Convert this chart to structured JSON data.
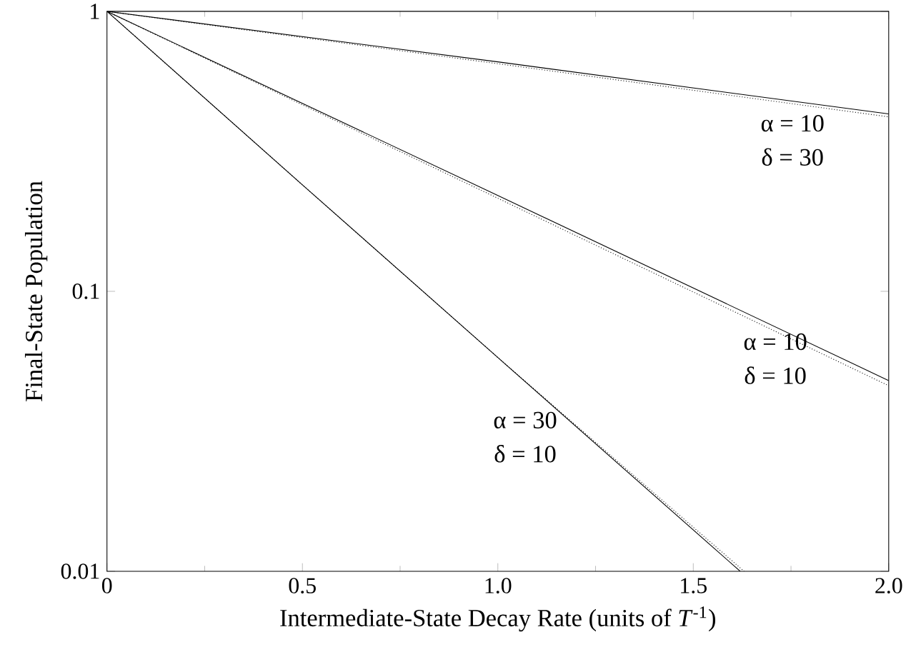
{
  "chart_data": {
    "type": "line",
    "xlabel": "Intermediate-State Decay Rate (units of *T*$^{-1}$)",
    "ylabel": "Final-State Population",
    "log": "y",
    "grid": false,
    "marker": "none",
    "xlim": [
      0,
      2
    ],
    "ylim": [
      0.01,
      1
    ],
    "xticks": [
      0,
      0.5,
      {
        "value": 1,
        "label": "1.0"
      },
      1.5,
      {
        "value": 2,
        "label": "2.0"
      }
    ],
    "yticks": [
      0.01,
      0.1,
      1
    ],
    "series": [
      {
        "color": "#000000",
        "line_style": "solid",
        "x": [
          0,
          1,
          2
        ],
        "values": [
          1,
          0.66,
          0.43
        ]
      },
      {
        "color": "#000000",
        "line_style": "dotted",
        "x": [
          0,
          1,
          2
        ],
        "values": [
          1,
          0.65,
          0.42
        ]
      },
      {
        "color": "#000000",
        "line_style": "solid",
        "x": [
          0,
          1,
          2
        ],
        "values": [
          1,
          0.22,
          0.048
        ]
      },
      {
        "color": "#000000",
        "line_style": "dotted",
        "x": [
          0,
          1,
          2
        ],
        "values": [
          1,
          0.215,
          0.046
        ]
      },
      {
        "color": "#000000",
        "line_style": "solid",
        "x": [
          0,
          0.5,
          1,
          1.62
        ],
        "values": [
          1,
          0.24,
          0.058,
          0.01
        ]
      },
      {
        "color": "#000000",
        "line_style": "dotted",
        "x": [
          0,
          0.5,
          1,
          1.63
        ],
        "values": [
          1,
          0.24,
          0.058,
          0.01
        ]
      }
    ],
    "annotations": [
      "α = 10",
      "δ = 30",
      "α = 10",
      "δ = 10",
      "α = 30",
      "δ = 10"
    ]
  }
}
